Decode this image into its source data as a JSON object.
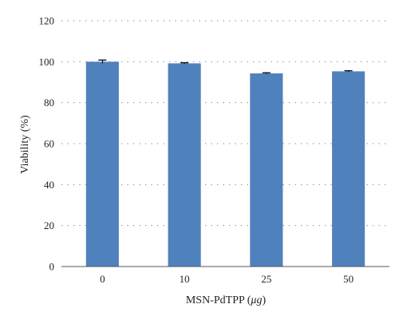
{
  "chart_data": {
    "type": "bar",
    "categories": [
      "0",
      "10",
      "25",
      "50"
    ],
    "values": [
      100,
      99.2,
      94.3,
      95.3
    ],
    "errors": [
      0.8,
      0.3,
      0.3,
      0.3
    ],
    "title": "",
    "xlabel_prefix": "MSN-PdTPP (",
    "xlabel_unit": "μg",
    "xlabel_suffix": ")",
    "ylabel": "Viability (%)",
    "ylim": [
      0,
      120
    ],
    "yticks": [
      "0",
      "20",
      "40",
      "60",
      "80",
      "100",
      "120"
    ],
    "grid": true,
    "bar_color": "#4f81bd",
    "grid_color": "#808080"
  }
}
